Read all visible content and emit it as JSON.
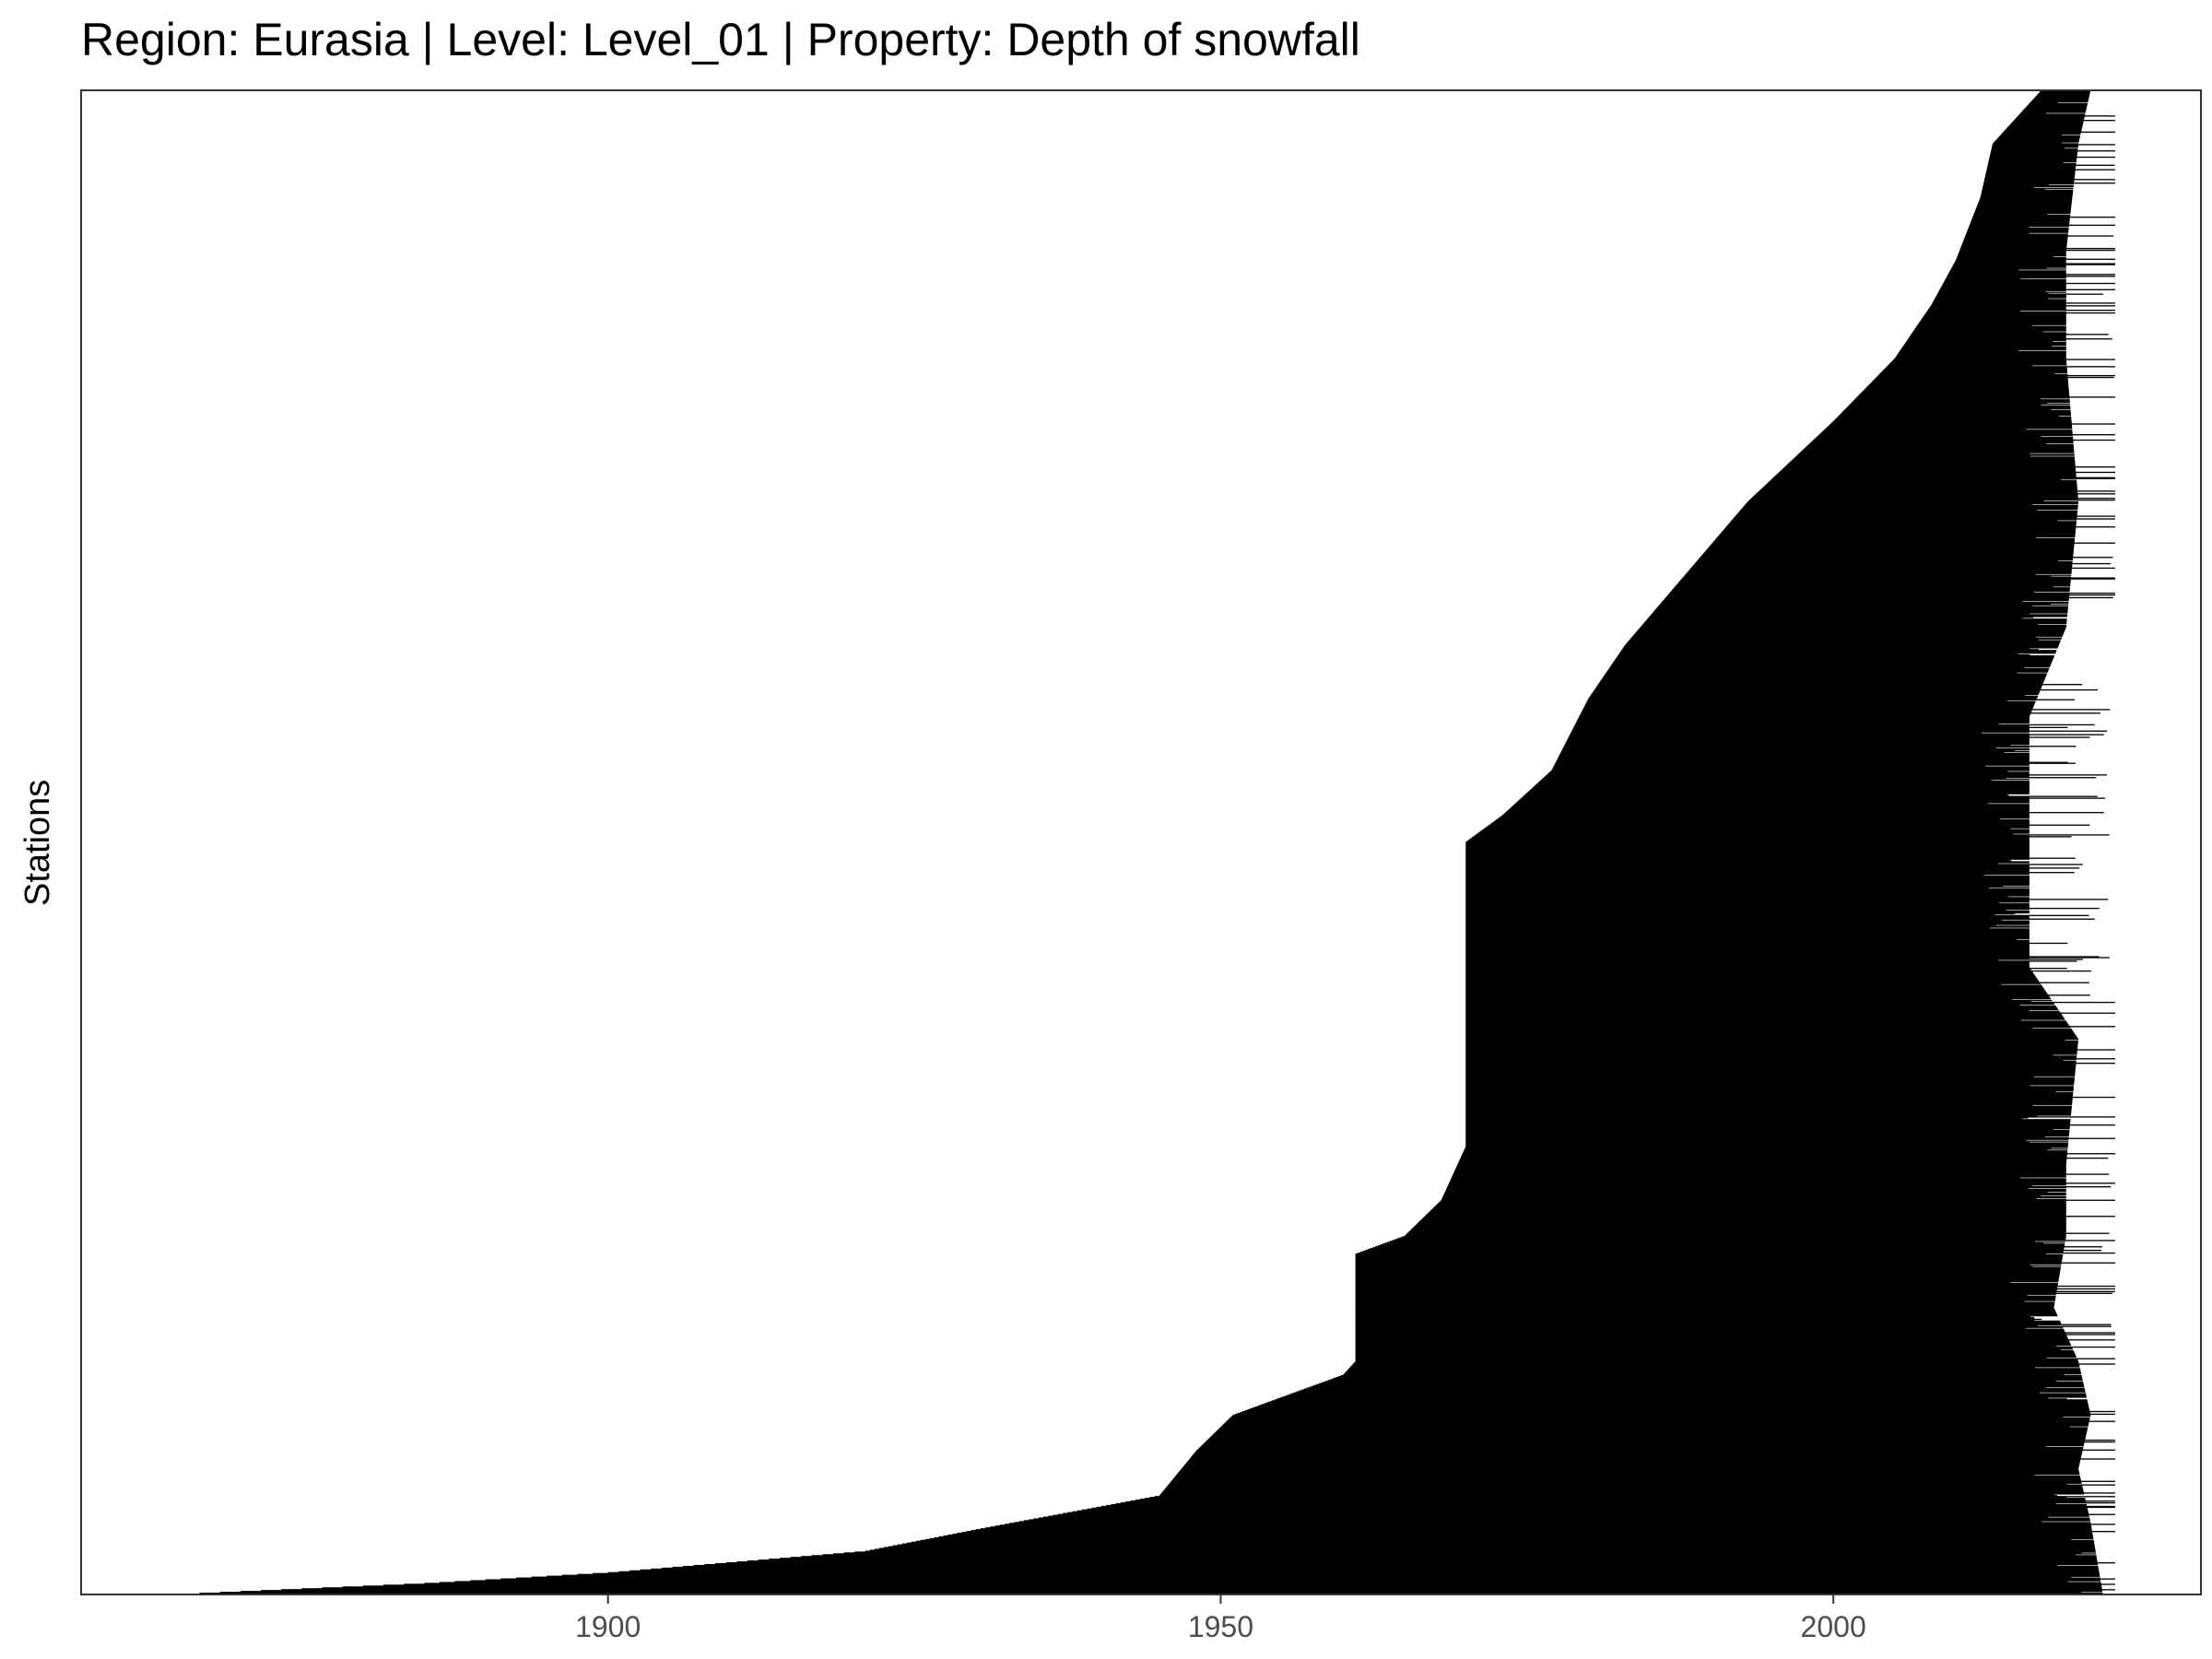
{
  "chart_data": {
    "type": "bar",
    "orientation": "horizontal",
    "title": "Region: Eurasia | Level: Level_01 | Property: Depth of snowfall",
    "xlabel": "",
    "ylabel": "Stations",
    "xlim": [
      1857,
      2030
    ],
    "x_ticks": [
      1900,
      1950,
      2000
    ],
    "grid": false,
    "legend": "none",
    "bar_color": "#000000",
    "station_count": 1680,
    "start_year_profile": [
      [
        0,
        1865
      ],
      [
        12,
        1885
      ],
      [
        24,
        1900
      ],
      [
        48,
        1921
      ],
      [
        72,
        1930
      ],
      [
        110,
        1945
      ],
      [
        160,
        1948
      ],
      [
        200,
        1951
      ],
      [
        245,
        1960
      ],
      [
        260,
        1961
      ],
      [
        380,
        1961
      ],
      [
        400,
        1965
      ],
      [
        440,
        1968
      ],
      [
        500,
        1970
      ],
      [
        840,
        1970
      ],
      [
        870,
        1973
      ],
      [
        920,
        1977
      ],
      [
        1000,
        1980
      ],
      [
        1060,
        1983
      ],
      [
        1140,
        1988
      ],
      [
        1220,
        1993
      ],
      [
        1310,
        2000
      ],
      [
        1380,
        2005
      ],
      [
        1440,
        2008
      ],
      [
        1490,
        2010
      ],
      [
        1560,
        2012
      ],
      [
        1620,
        2013
      ],
      [
        1680,
        2017
      ]
    ],
    "end_year_profile": [
      [
        0,
        2022
      ],
      [
        80,
        2021
      ],
      [
        140,
        2020
      ],
      [
        200,
        2021
      ],
      [
        260,
        2020
      ],
      [
        320,
        2018
      ],
      [
        400,
        2019
      ],
      [
        480,
        2019
      ],
      [
        620,
        2020
      ],
      [
        700,
        2016
      ],
      [
        980,
        2016
      ],
      [
        1080,
        2019
      ],
      [
        1220,
        2020
      ],
      [
        1380,
        2019
      ],
      [
        1500,
        2019
      ],
      [
        1620,
        2020
      ],
      [
        1680,
        2021
      ]
    ]
  }
}
